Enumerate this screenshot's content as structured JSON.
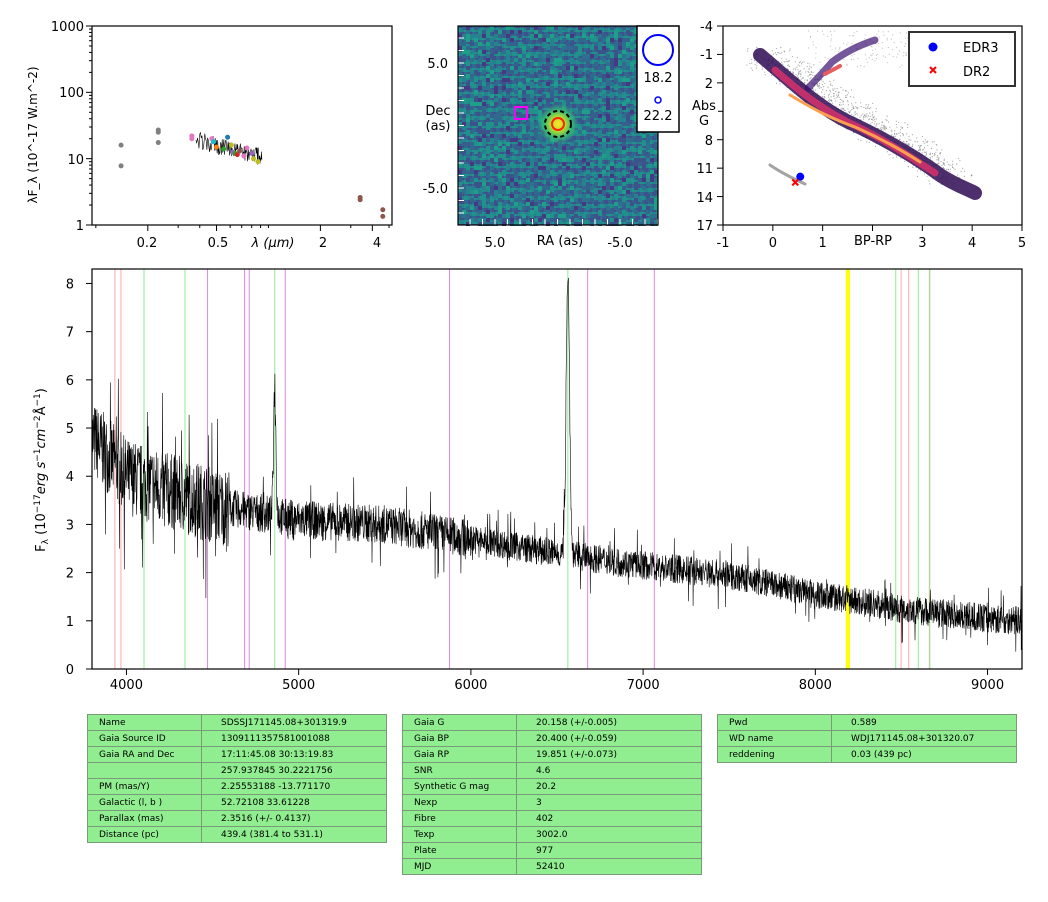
{
  "colors": {
    "spectrum": "#000000",
    "table_bg": "#90ee90",
    "edr3": "#0000ff",
    "dr2": "#ff0000"
  },
  "sed_panel": {
    "ylabel": "λF_λ (10^-17 W.m^-2)",
    "ytick_labels": [
      "1000",
      "100",
      "10",
      "1"
    ],
    "xtick_labels": [
      "0.2",
      "0.5",
      "2",
      "4"
    ],
    "xlabel": "λ (μm)",
    "points": [
      {
        "x": 0.14,
        "y": 16,
        "color": "#7f7f7f"
      },
      {
        "x": 0.14,
        "y": 7.8,
        "color": "#7f7f7f"
      },
      {
        "x": 0.23,
        "y": 27,
        "color": "#7f7f7f"
      },
      {
        "x": 0.23,
        "y": 25,
        "color": "#7f7f7f"
      },
      {
        "x": 0.23,
        "y": 17.5,
        "color": "#7f7f7f"
      },
      {
        "x": 0.36,
        "y": 22,
        "color": "#e377c2"
      },
      {
        "x": 0.36,
        "y": 20,
        "color": "#e377c2"
      },
      {
        "x": 0.47,
        "y": 20,
        "color": "#e377c2"
      },
      {
        "x": 0.48,
        "y": 18,
        "color": "#17becf"
      },
      {
        "x": 0.5,
        "y": 15,
        "color": "#ff7f0e"
      },
      {
        "x": 0.55,
        "y": 14,
        "color": "#2ca02c"
      },
      {
        "x": 0.58,
        "y": 21,
        "color": "#1f77b4"
      },
      {
        "x": 0.61,
        "y": 16,
        "color": "#bcbd22"
      },
      {
        "x": 0.62,
        "y": 12.5,
        "color": "#9467bd"
      },
      {
        "x": 0.64,
        "y": 12,
        "color": "#2ca02c"
      },
      {
        "x": 0.66,
        "y": 11.5,
        "color": "#d62728"
      },
      {
        "x": 0.68,
        "y": 13,
        "color": "#8c564b"
      },
      {
        "x": 0.72,
        "y": 11,
        "color": "#e377c2"
      },
      {
        "x": 0.75,
        "y": 14.5,
        "color": "#e377c2"
      },
      {
        "x": 0.82,
        "y": 10,
        "color": "#bcbd22"
      },
      {
        "x": 0.87,
        "y": 9,
        "color": "#bcbd22"
      },
      {
        "x": 0.8,
        "y": 12,
        "color": "#9467bd"
      },
      {
        "x": 3.4,
        "y": 2.6,
        "color": "#8c564b"
      },
      {
        "x": 3.4,
        "y": 2.4,
        "color": "#8c564b"
      },
      {
        "x": 4.6,
        "y": 1.7,
        "color": "#8c564b"
      },
      {
        "x": 4.6,
        "y": 1.35,
        "color": "#8c564b"
      }
    ]
  },
  "image_panel": {
    "ylabel": "Dec (as)",
    "xlabel": "RA (as)",
    "ytick_labels": [
      "5.0",
      "-5.0"
    ],
    "xtick_labels": [
      "5.0",
      "-5.0"
    ],
    "legend_labels": [
      "18.2",
      "22.2"
    ]
  },
  "hr_panel": {
    "ylabel": "Abs G",
    "xlabel": "BP-RP",
    "ytick_labels": [
      "-4",
      "-1",
      "2",
      "5",
      "8",
      "11",
      "14",
      "17"
    ],
    "xtick_labels": [
      "-1",
      "0",
      "1",
      "2",
      "3",
      "4",
      "5"
    ],
    "legend": [
      {
        "label": "EDR3",
        "marker": "circle",
        "color": "#0000ff"
      },
      {
        "label": "DR2",
        "marker": "x",
        "color": "#ff0000"
      }
    ],
    "edr3_point": {
      "x": 0.55,
      "y": 11.9
    },
    "dr2_point": {
      "x": 0.45,
      "y": 12.5
    }
  },
  "chart_data": {
    "type": "line",
    "ylabel": "F_λ (10^-17 erg s^-1 cm^-2 Å^-1)",
    "xlim": [
      3800,
      9200
    ],
    "ylim": [
      0,
      8.3
    ],
    "xtick_labels": [
      "4000",
      "5000",
      "6000",
      "7000",
      "8000",
      "9000"
    ],
    "ytick_labels": [
      "0",
      "1",
      "2",
      "3",
      "4",
      "5",
      "6",
      "7",
      "8"
    ],
    "continuum": [
      [
        3800,
        4.8
      ],
      [
        4000,
        4.0
      ],
      [
        4500,
        3.4
      ],
      [
        5000,
        3.1
      ],
      [
        5500,
        3.0
      ],
      [
        6000,
        2.7
      ],
      [
        6500,
        2.4
      ],
      [
        7000,
        2.15
      ],
      [
        7500,
        1.95
      ],
      [
        8000,
        1.55
      ],
      [
        8500,
        1.25
      ],
      [
        9000,
        1.05
      ],
      [
        9200,
        1.0
      ]
    ],
    "emission_lines": [
      {
        "x": 4861,
        "peak": 5.9
      },
      {
        "x": 6563,
        "peak": 8.2
      }
    ],
    "lines": [
      {
        "x": 3933,
        "color": "#ffaaaa"
      },
      {
        "x": 3968,
        "color": "#ffaaaa"
      },
      {
        "x": 4102,
        "color": "#90ee90"
      },
      {
        "x": 4340,
        "color": "#90ee90"
      },
      {
        "x": 4471,
        "color": "#dd88dd"
      },
      {
        "x": 4686,
        "color": "#dd88dd"
      },
      {
        "x": 4713,
        "color": "#dd88dd"
      },
      {
        "x": 4861,
        "color": "#90ee90"
      },
      {
        "x": 4922,
        "color": "#dd88dd"
      },
      {
        "x": 5876,
        "color": "#dd88dd"
      },
      {
        "x": 6563,
        "color": "#90ee90"
      },
      {
        "x": 6678,
        "color": "#dd88dd"
      },
      {
        "x": 7065,
        "color": "#dd88dd"
      },
      {
        "x": 8183,
        "color": "#ffff00"
      },
      {
        "x": 8195,
        "color": "#ffff00"
      },
      {
        "x": 8467,
        "color": "#90ee90"
      },
      {
        "x": 8498,
        "color": "#ffaaaa"
      },
      {
        "x": 8542,
        "color": "#ffaaaa"
      },
      {
        "x": 8598,
        "color": "#90ee90"
      },
      {
        "x": 8662,
        "color": "#ffaaaa"
      },
      {
        "x": 8665,
        "color": "#90ee90"
      }
    ]
  },
  "tables": {
    "t1": [
      [
        "Name",
        "SDSSJ171145.08+301319.9"
      ],
      [
        "Gaia Source ID",
        "1309111357581001088"
      ],
      [
        "Gaia RA and Dec",
        "17:11:45.08    30:13:19.83"
      ],
      [
        "",
        "257.937845    30.2221756"
      ],
      [
        "PM (mas/Y)",
        "2.25553188    -13.771170"
      ],
      [
        "Galactic (l, b )",
        "52.72108    33.61228"
      ],
      [
        "Parallax (mas)",
        "2.3516 (+/- 0.4137)"
      ],
      [
        "Distance (pc)",
        "439.4 (381.4 to 531.1)"
      ]
    ],
    "t2": [
      [
        "Gaia G",
        "20.158 (+/-0.005)"
      ],
      [
        "Gaia BP",
        "20.400 (+/-0.059)"
      ],
      [
        "Gaia RP",
        "19.851 (+/-0.073)"
      ],
      [
        "SNR",
        "4.6"
      ],
      [
        "Synthetic G mag",
        "20.2"
      ],
      [
        "Nexp",
        "3"
      ],
      [
        "Fibre",
        "402"
      ],
      [
        "Texp",
        "3002.0"
      ],
      [
        "Plate",
        "977"
      ],
      [
        "MJD",
        "52410"
      ]
    ],
    "t3": [
      [
        "Pwd",
        "0.589"
      ],
      [
        "WD name",
        "WDJ171145.08+301320.07"
      ],
      [
        "reddening",
        "0.03 (439 pc)"
      ]
    ]
  }
}
